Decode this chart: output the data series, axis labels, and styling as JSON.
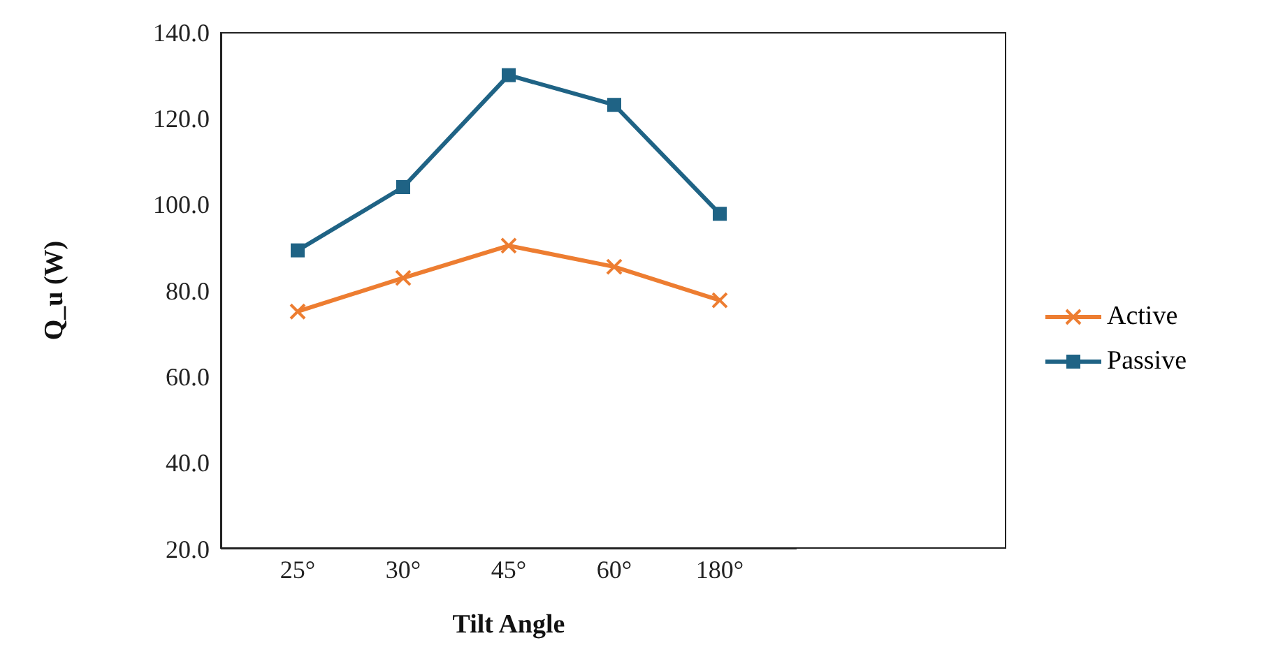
{
  "chart_data": {
    "type": "line",
    "xlabel": "Tilt Angle",
    "ylabel": "Q_u (W)",
    "categories": [
      "25°",
      "30°",
      "45°",
      "60°",
      "180°"
    ],
    "series": [
      {
        "name": "Active",
        "color": "#ed7d31",
        "marker": "cross",
        "values": [
          75.1,
          82.9,
          90.4,
          85.5,
          77.7
        ]
      },
      {
        "name": "Passive",
        "color": "#1f6385",
        "marker": "square",
        "values": [
          89.3,
          104.0,
          130.0,
          123.1,
          97.8
        ]
      }
    ],
    "ylim": [
      20,
      140
    ],
    "yticks": [
      {
        "value": 20,
        "label": "20.0"
      },
      {
        "value": 40,
        "label": "40.0"
      },
      {
        "value": 60,
        "label": "60.0"
      },
      {
        "value": 80,
        "label": "80.0"
      },
      {
        "value": 100,
        "label": "100.0"
      },
      {
        "value": 120,
        "label": "120.0"
      },
      {
        "value": 140,
        "label": "140.0"
      }
    ],
    "grid": false,
    "legend": "right"
  }
}
